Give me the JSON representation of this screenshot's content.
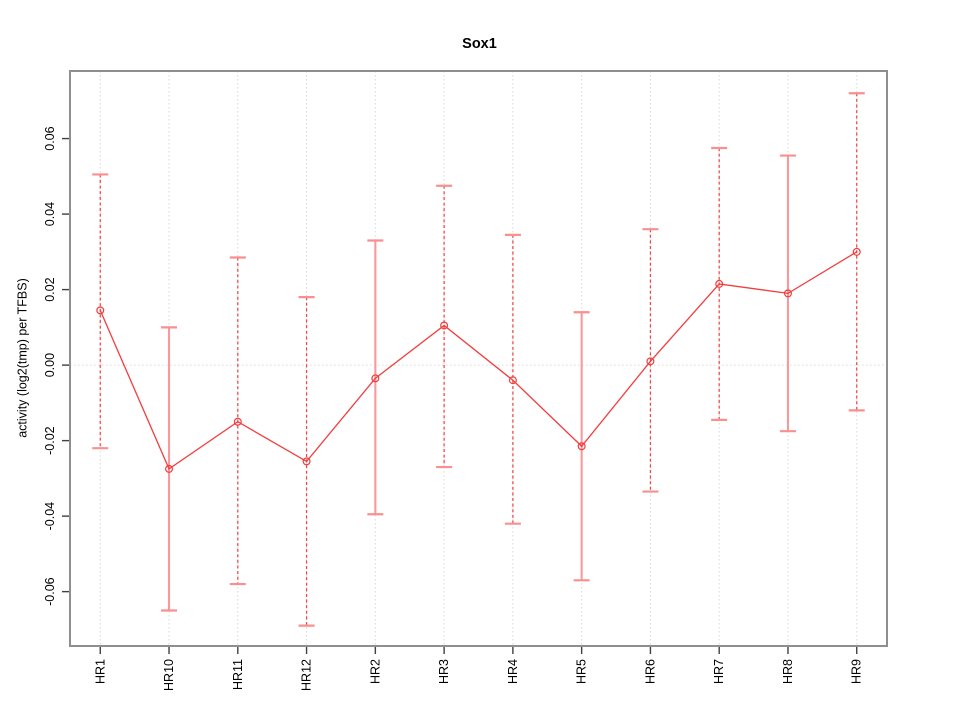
{
  "chart_data": {
    "type": "line",
    "title": "Sox1",
    "xlabel": "",
    "ylabel": "activity (log2(tmp) per TFBS)",
    "legend_position": "none",
    "point_style": "open-circle",
    "grid": {
      "vertical_dotted_per_category": true,
      "horizontal_dotted_at_zero": true
    },
    "categories": [
      "HR1",
      "HR10",
      "HR11",
      "HR12",
      "HR2",
      "HR3",
      "HR4",
      "HR5",
      "HR6",
      "HR7",
      "HR8",
      "HR9"
    ],
    "series": [
      {
        "name": "activity",
        "values": [
          0.0145,
          -0.0275,
          -0.015,
          -0.0255,
          -0.0035,
          0.0105,
          -0.004,
          -0.0215,
          0.001,
          0.0215,
          0.019,
          0.03
        ],
        "upper": [
          0.0505,
          0.01,
          0.0285,
          0.018,
          0.033,
          0.0475,
          0.0345,
          0.014,
          0.036,
          0.0575,
          0.0555,
          0.072
        ],
        "lower": [
          -0.022,
          -0.065,
          -0.058,
          -0.069,
          -0.0395,
          -0.027,
          -0.042,
          -0.057,
          -0.0335,
          -0.0145,
          -0.0175,
          -0.012
        ]
      }
    ],
    "error_bar_line_styles": [
      "dashed",
      "solid",
      "dashed",
      "dashed",
      "solid",
      "dashed",
      "dashed",
      "solid",
      "dashed",
      "dashed",
      "solid",
      "dashed"
    ],
    "ylim": [
      -0.0744,
      0.0779
    ],
    "yticks": {
      "values": [
        -0.06,
        -0.04,
        -0.02,
        0.0,
        0.02,
        0.04,
        0.06
      ],
      "labels": [
        "-0.06",
        "-0.04",
        "-0.02",
        "0.00",
        "0.02",
        "0.04",
        "0.06"
      ]
    },
    "colors": {
      "line": "#f23d3d",
      "point": "#f23d3d",
      "error_bar_dashed": "#ee4747",
      "error_bar_solid": "#f99a9a",
      "cap": "#f98f8f",
      "grid": "#d9d9d9",
      "frame": "#8f8f8f",
      "tick": "#404040",
      "text": "#000000",
      "background": "#ffffff"
    }
  }
}
